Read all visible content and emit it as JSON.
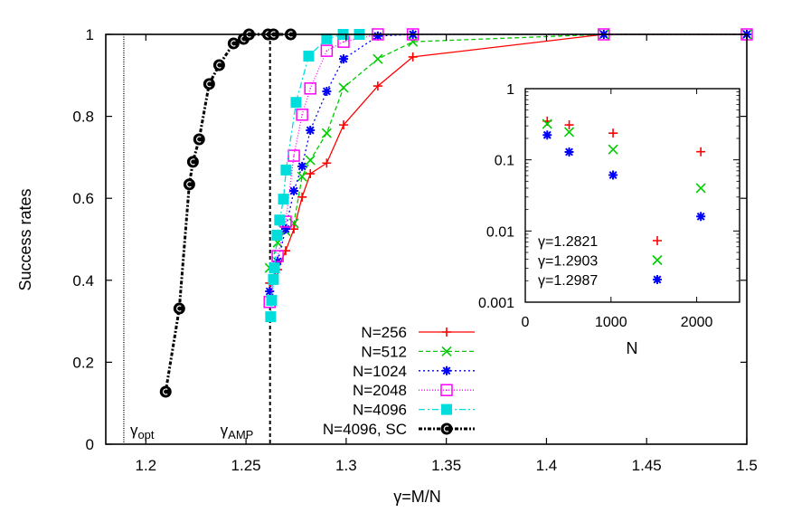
{
  "chart_data": [
    {
      "type": "line",
      "id": "main",
      "title": "",
      "xlabel": "γ=M/N",
      "ylabel": "Success rates",
      "xlim": [
        1.18,
        1.5
      ],
      "ylim": [
        0,
        1
      ],
      "xticks": [
        1.2,
        1.25,
        1.3,
        1.35,
        1.4,
        1.45,
        1.5
      ],
      "xtick_labels": [
        "1.2",
        "1.25",
        "1.3",
        "1.35",
        "1.4",
        "1.45",
        "1.5"
      ],
      "yticks": [
        0,
        0.2,
        0.4,
        0.6,
        0.8,
        1
      ],
      "ytick_labels": [
        "0",
        "0.2",
        "0.4",
        "0.6",
        "0.8",
        "1"
      ],
      "grid": false,
      "legend_position": "bottom-center",
      "vlines": [
        {
          "name": "gamma-opt",
          "x": 1.189,
          "label_main": "γ",
          "label_sub": "opt",
          "style": "dotted"
        },
        {
          "name": "gamma-amp",
          "x": 1.262,
          "label_main": "γ",
          "label_sub": "AMP",
          "style": "dashed"
        }
      ],
      "series": [
        {
          "name": "N=256",
          "color": "#ff0000",
          "marker": "plus",
          "dash": "solid",
          "x": [
            1.2618,
            1.2658,
            1.2698,
            1.2739,
            1.278,
            1.2821,
            1.2903,
            1.2987,
            1.3158,
            1.3333,
            1.4286,
            1.5
          ],
          "y": [
            0.393,
            0.426,
            0.472,
            0.525,
            0.603,
            0.66,
            0.686,
            0.779,
            0.874,
            0.945,
            1.0,
            1.0
          ]
        },
        {
          "name": "N=512",
          "color": "#00cc00",
          "marker": "x",
          "dash": "dashed",
          "x": [
            1.2618,
            1.2658,
            1.2698,
            1.2739,
            1.278,
            1.2821,
            1.2903,
            1.2987,
            1.3158,
            1.3333,
            1.4286,
            1.5
          ],
          "y": [
            0.43,
            0.492,
            0.52,
            0.539,
            0.653,
            0.693,
            0.759,
            0.87,
            0.94,
            0.982,
            1.0,
            1.0
          ]
        },
        {
          "name": "N=1024",
          "color": "#0000ff",
          "marker": "star",
          "dash": "dotted",
          "x": [
            1.2618,
            1.2658,
            1.2698,
            1.2739,
            1.278,
            1.2821,
            1.2903,
            1.2987,
            1.3158,
            1.3333,
            1.4286,
            1.5
          ],
          "y": [
            0.373,
            0.446,
            0.525,
            0.618,
            0.678,
            0.766,
            0.861,
            0.94,
            0.996,
            1.0,
            1.0,
            1.0
          ]
        },
        {
          "name": "N=2048",
          "color": "#ff00ff",
          "marker": "open-square",
          "dash": "finedot",
          "x": [
            1.2618,
            1.2658,
            1.2698,
            1.2739,
            1.278,
            1.2821,
            1.2903,
            1.2987,
            1.3158,
            1.3333,
            1.4286,
            1.5
          ],
          "y": [
            0.347,
            0.459,
            0.543,
            0.704,
            0.804,
            0.868,
            0.96,
            0.982,
            1.0,
            1.0,
            1.0,
            1.0
          ]
        },
        {
          "name": "N=4096",
          "color": "#00dddd",
          "marker": "filled-square",
          "dash": "dashdot",
          "x": [
            1.2623,
            1.2628,
            1.2637,
            1.2642,
            1.2655,
            1.2668,
            1.2687,
            1.27,
            1.275,
            1.2813,
            1.2903,
            1.2985,
            1.3066
          ],
          "y": [
            0.311,
            0.351,
            0.402,
            0.43,
            0.51,
            0.547,
            0.598,
            0.669,
            0.834,
            0.947,
            0.989,
            1.0,
            1.0
          ]
        },
        {
          "name": "N=4096, SC",
          "color": "#000000",
          "marker": "circle",
          "dash": "dashdotbold",
          "x": [
            1.2099,
            1.2167,
            1.2217,
            1.2235,
            1.2266,
            1.2316,
            1.2366,
            1.2438,
            1.2488,
            1.2515,
            1.261,
            1.2637,
            1.2723
          ],
          "y": [
            0.128,
            0.331,
            0.634,
            0.689,
            0.744,
            0.879,
            0.925,
            0.978,
            0.989,
            1.0,
            1.0,
            1.0,
            1.0
          ]
        }
      ]
    },
    {
      "type": "scatter",
      "id": "inset",
      "title": "",
      "xlabel": "N",
      "ylabel": "",
      "xscale": "linear",
      "yscale": "log",
      "xlim": [
        0,
        2500
      ],
      "ylim": [
        0.001,
        1
      ],
      "xticks": [
        0,
        1000,
        2000
      ],
      "xtick_labels": [
        "0",
        "1000",
        "2000"
      ],
      "yticks": [
        0.001,
        0.01,
        0.1,
        1
      ],
      "ytick_labels": [
        "0.001",
        "0.01",
        "0.1",
        "1"
      ],
      "grid": false,
      "legend_position": "bottom-left",
      "series": [
        {
          "name": "γ=1.2821",
          "color": "#ff0000",
          "marker": "plus",
          "x": [
            256,
            512,
            1024,
            2048
          ],
          "y": [
            0.35,
            0.31,
            0.237,
            0.13
          ]
        },
        {
          "name": "γ=1.2903",
          "color": "#00cc00",
          "marker": "x",
          "x": [
            256,
            512,
            1024,
            2048
          ],
          "y": [
            0.32,
            0.246,
            0.14,
            0.04
          ]
        },
        {
          "name": "γ=1.2987",
          "color": "#0000ff",
          "marker": "star",
          "x": [
            256,
            512,
            1024,
            2048
          ],
          "y": [
            0.223,
            0.129,
            0.061,
            0.016
          ]
        }
      ]
    }
  ]
}
